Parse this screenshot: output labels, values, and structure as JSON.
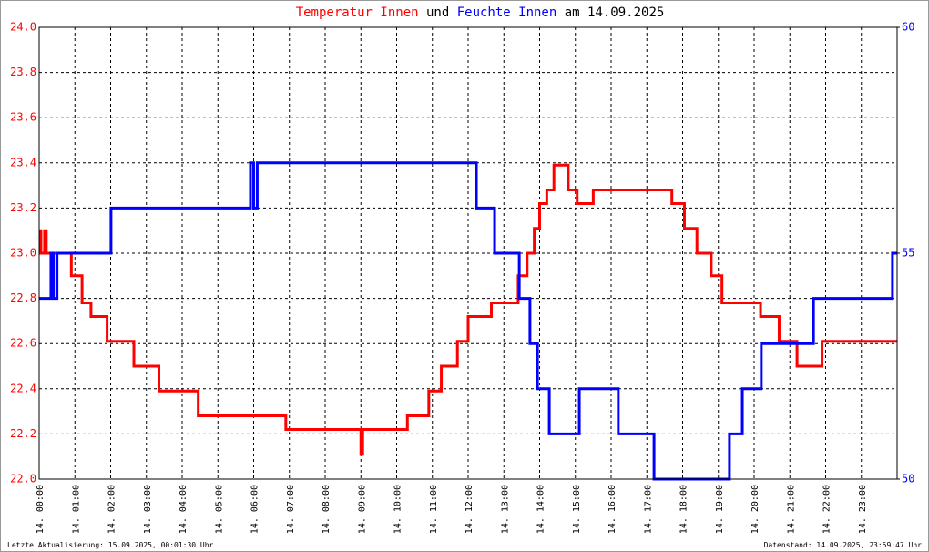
{
  "chart_data": {
    "type": "line",
    "title_parts": [
      "und",
      "am 14.09.2025"
    ],
    "footer_left": "Letzte Aktualisierung: 15.09.2025, 00:01:30 Uhr",
    "footer_right": "Datenstand: 14.09.2025, 23:59:47 Uhr",
    "xlim": [
      0,
      24
    ],
    "xticks": [
      {
        "value": 0,
        "label": "14. 00:00"
      },
      {
        "value": 1,
        "label": "14. 01:00"
      },
      {
        "value": 2,
        "label": "14. 02:00"
      },
      {
        "value": 3,
        "label": "14. 03:00"
      },
      {
        "value": 4,
        "label": "14. 04:00"
      },
      {
        "value": 5,
        "label": "14. 05:00"
      },
      {
        "value": 6,
        "label": "14. 06:00"
      },
      {
        "value": 7,
        "label": "14. 07:00"
      },
      {
        "value": 8,
        "label": "14. 08:00"
      },
      {
        "value": 9,
        "label": "14. 09:00"
      },
      {
        "value": 10,
        "label": "14. 10:00"
      },
      {
        "value": 11,
        "label": "14. 11:00"
      },
      {
        "value": 12,
        "label": "14. 12:00"
      },
      {
        "value": 13,
        "label": "14. 13:00"
      },
      {
        "value": 14,
        "label": "14. 14:00"
      },
      {
        "value": 15,
        "label": "14. 15:00"
      },
      {
        "value": 16,
        "label": "14. 16:00"
      },
      {
        "value": 17,
        "label": "14. 17:00"
      },
      {
        "value": 18,
        "label": "14. 18:00"
      },
      {
        "value": 19,
        "label": "14. 19:00"
      },
      {
        "value": 20,
        "label": "14. 20:00"
      },
      {
        "value": 21,
        "label": "14. 21:00"
      },
      {
        "value": 22,
        "label": "14. 22:00"
      },
      {
        "value": 23,
        "label": "14. 23:00"
      }
    ],
    "ylim": [
      22,
      24
    ],
    "yticks": [
      {
        "value": 22,
        "label": "22.0"
      },
      22.2,
      22.4,
      22.6,
      22.8,
      {
        "value": 23,
        "label": "23.0"
      },
      23.2,
      23.4,
      23.6,
      23.8,
      {
        "value": 24,
        "label": "24.0"
      }
    ],
    "y2lim": [
      50,
      60
    ],
    "y2ticks": [
      50,
      55,
      60
    ],
    "grid": true,
    "series": [
      {
        "name": "Temperatur Innen",
        "color": "#ff0000",
        "x": [
          0,
          0.05,
          0.05,
          0.15,
          0.15,
          0.2,
          0.2,
          0.9,
          0.9,
          1.2,
          1.2,
          1.45,
          1.45,
          1.9,
          1.9,
          2.65,
          2.65,
          3.35,
          3.35,
          4.45,
          4.45,
          6.9,
          6.9,
          9.0,
          9.0,
          9.05,
          9.05,
          10.3,
          10.3,
          10.9,
          10.9,
          11.25,
          11.25,
          11.7,
          11.7,
          12.0,
          12.0,
          12.65,
          12.65,
          13.4,
          13.4,
          13.65,
          13.65,
          13.85,
          13.85,
          14.0,
          14.0,
          14.2,
          14.2,
          14.4,
          14.4,
          14.8,
          14.8,
          15.05,
          15.05,
          15.5,
          15.5,
          17.7,
          17.7,
          18.05,
          18.05,
          18.4,
          18.4,
          18.8,
          18.8,
          19.1,
          19.1,
          20.18,
          20.18,
          20.7,
          20.7,
          21.2,
          21.2,
          21.9,
          21.9,
          24
        ],
        "values": [
          23.1,
          23.1,
          23.0,
          23.0,
          23.1,
          23.1,
          23.0,
          23.0,
          22.9,
          22.9,
          22.78,
          22.78,
          22.72,
          22.72,
          22.61,
          22.61,
          22.5,
          22.5,
          22.39,
          22.39,
          22.28,
          22.28,
          22.22,
          22.22,
          22.11,
          22.11,
          22.22,
          22.22,
          22.28,
          22.28,
          22.39,
          22.39,
          22.5,
          22.5,
          22.61,
          22.61,
          22.72,
          22.72,
          22.78,
          22.78,
          22.9,
          22.9,
          23.0,
          23.0,
          23.11,
          23.11,
          23.22,
          23.22,
          23.28,
          23.28,
          23.39,
          23.39,
          23.28,
          23.28,
          23.22,
          23.22,
          23.28,
          23.28,
          23.22,
          23.22,
          23.11,
          23.11,
          23.0,
          23.0,
          22.9,
          22.9,
          22.78,
          22.78,
          22.72,
          22.72,
          22.61,
          22.61,
          22.5,
          22.5,
          22.61,
          22.61
        ]
      },
      {
        "name": "Feuchte Innen",
        "color": "#0000ff",
        "axis": "y2",
        "x": [
          0,
          0.33,
          0.33,
          0.4,
          0.4,
          0.5,
          0.5,
          2.01,
          2.01,
          5.91,
          5.91,
          6.0,
          6.0,
          6.1,
          6.1,
          12.23,
          12.23,
          12.74,
          12.74,
          13.43,
          13.43,
          13.73,
          13.73,
          13.94,
          13.94,
          14.27,
          14.27,
          15.11,
          15.11,
          16.2,
          16.2,
          17.2,
          17.2,
          19.31,
          19.31,
          19.67,
          19.67,
          20.2,
          20.2,
          21.66,
          21.66,
          23.87,
          23.87,
          24
        ],
        "values": [
          54,
          54,
          55,
          55,
          54,
          54,
          55,
          55,
          56,
          56,
          57,
          57,
          56,
          56,
          57,
          57,
          56,
          56,
          55,
          55,
          54,
          54,
          53,
          53,
          52,
          52,
          51,
          51,
          52,
          52,
          51,
          51,
          50,
          50,
          51,
          51,
          52,
          52,
          53,
          53,
          54,
          54,
          55,
          55
        ]
      }
    ]
  }
}
